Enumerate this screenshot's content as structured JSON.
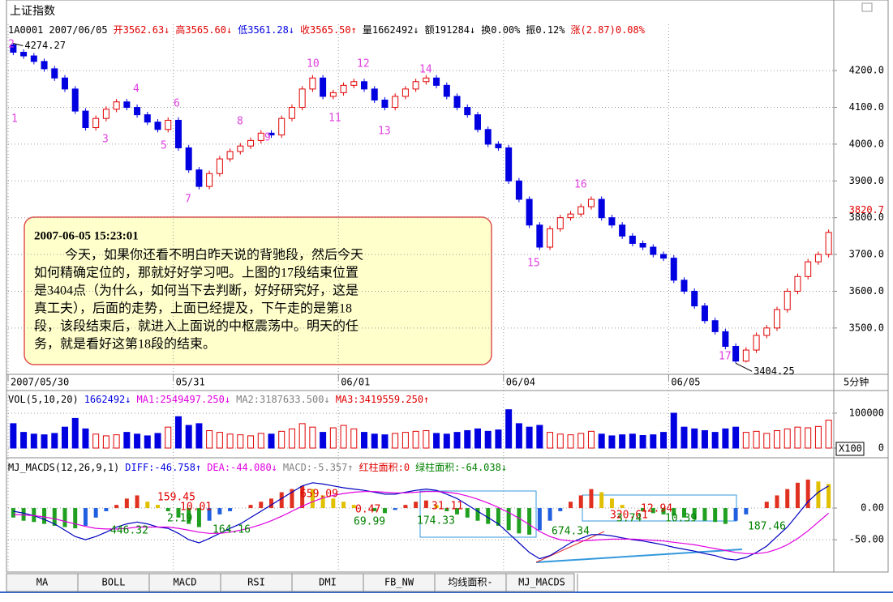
{
  "header": {
    "title": "上证指数",
    "items": [
      {
        "text": "1A0001",
        "color": "#000000"
      },
      {
        "text": "2007/06/05",
        "color": "#000000"
      },
      {
        "text": "开3562.63↓",
        "color": "#e00000"
      },
      {
        "text": "高3565.60↓",
        "color": "#e00000"
      },
      {
        "text": "低3561.28↓",
        "color": "#0000e0"
      },
      {
        "text": "收3565.50↑",
        "color": "#e00000"
      },
      {
        "text": "量1662492↓",
        "color": "#000000"
      },
      {
        "text": "额191284↓",
        "color": "#000000"
      },
      {
        "text": "换0.00%",
        "color": "#000000"
      },
      {
        "text": "振0.12%",
        "color": "#000000"
      },
      {
        "text": "涨(2.87)0.08%",
        "color": "#e00000"
      }
    ]
  },
  "chart_data": [
    {
      "type": "candlestick",
      "up_color": "#e00000",
      "down_color": "#0000e0",
      "ylim": [
        3374,
        4326
      ],
      "yticks": [
        {
          "value": 3500,
          "label": "3500.0"
        },
        {
          "value": 3600,
          "label": "3600.0"
        },
        {
          "value": 3700,
          "label": "3700.0"
        },
        {
          "value": 3800,
          "label": "3800.0"
        },
        {
          "value": 3900,
          "label": "3900.0"
        },
        {
          "value": 4000,
          "label": "4000.0"
        },
        {
          "value": 4100,
          "label": "4100.0"
        },
        {
          "value": 4200,
          "label": "4200.0"
        }
      ],
      "grid": true,
      "price_marker": 3820.7,
      "xticks": [
        "2007/05/30",
        "05/31",
        "06/01",
        "06/04",
        "06/05"
      ],
      "x_unit": "5分钟",
      "max_label": "4274.27",
      "min_label": "3404.25",
      "segments": [
        "1",
        "2",
        "3",
        "4",
        "5",
        "6",
        "7",
        "8",
        "9",
        "10",
        "11",
        "12",
        "13",
        "14",
        "15",
        "16",
        "17"
      ],
      "open": [
        4270,
        4250,
        4240,
        4225,
        4205,
        4180,
        4150,
        4090,
        4045,
        4070,
        4095,
        4115,
        4100,
        4080,
        4060,
        4040,
        4065,
        3990,
        3930,
        3885,
        3920,
        3960,
        3980,
        3995,
        4010,
        4030,
        4025,
        4070,
        4100,
        4150,
        4180,
        4130,
        4140,
        4160,
        4170,
        4150,
        4120,
        4100,
        4130,
        4150,
        4170,
        4180,
        4160,
        4130,
        4100,
        4080,
        4040,
        4000,
        3990,
        3900,
        3850,
        3780,
        3720,
        3770,
        3800,
        3810,
        3830,
        3850,
        3800,
        3780,
        3750,
        3730,
        3720,
        3700,
        3690,
        3630,
        3600,
        3560,
        3520,
        3490,
        3450,
        3410,
        3440,
        3480,
        3500,
        3550,
        3600,
        3640,
        3680,
        3700
      ],
      "close": [
        4250,
        4240,
        4225,
        4205,
        4180,
        4150,
        4090,
        4045,
        4070,
        4095,
        4115,
        4100,
        4080,
        4060,
        4040,
        4065,
        3990,
        3930,
        3885,
        3920,
        3960,
        3980,
        3995,
        4010,
        4030,
        4025,
        4070,
        4100,
        4150,
        4180,
        4130,
        4140,
        4160,
        4170,
        4150,
        4120,
        4100,
        4130,
        4150,
        4170,
        4180,
        4160,
        4130,
        4100,
        4080,
        4040,
        4000,
        3990,
        3900,
        3850,
        3780,
        3720,
        3770,
        3800,
        3810,
        3830,
        3850,
        3800,
        3780,
        3750,
        3730,
        3720,
        3700,
        3690,
        3630,
        3600,
        3560,
        3520,
        3490,
        3450,
        3410,
        3440,
        3480,
        3500,
        3550,
        3600,
        3640,
        3680,
        3700,
        3760
      ],
      "high": [
        4274.27,
        4258,
        4248,
        4233,
        4213,
        4188,
        4158,
        4098,
        4078,
        4103,
        4123,
        4123,
        4108,
        4088,
        4068,
        4073,
        4073,
        3998,
        3938,
        3928,
        3968,
        3988,
        4003,
        4018,
        4038,
        4038,
        4078,
        4108,
        4158,
        4188,
        4188,
        4148,
        4168,
        4178,
        4178,
        4158,
        4128,
        4138,
        4158,
        4178,
        4188,
        4188,
        4168,
        4138,
        4108,
        4088,
        4048,
        4008,
        3998,
        3908,
        3858,
        3788,
        3778,
        3808,
        3818,
        3838,
        3858,
        3858,
        3808,
        3788,
        3758,
        3738,
        3728,
        3708,
        3698,
        3638,
        3608,
        3568,
        3528,
        3498,
        3458,
        3448,
        3488,
        3508,
        3558,
        3608,
        3648,
        3688,
        3708,
        3768
      ],
      "low": [
        4242,
        4232,
        4217,
        4197,
        4172,
        4142,
        4082,
        4037,
        4037,
        4062,
        4087,
        4092,
        4072,
        4052,
        4032,
        4032,
        3982,
        3922,
        3877,
        3877,
        3912,
        3952,
        3972,
        3987,
        4002,
        4017,
        4017,
        4062,
        4092,
        4142,
        4122,
        4122,
        4132,
        4152,
        4142,
        4112,
        4092,
        4092,
        4122,
        4142,
        4162,
        4152,
        4122,
        4092,
        4072,
        4032,
        3992,
        3982,
        3892,
        3842,
        3772,
        3712,
        3712,
        3762,
        3792,
        3802,
        3822,
        3792,
        3772,
        3742,
        3722,
        3712,
        3692,
        3682,
        3622,
        3592,
        3552,
        3512,
        3482,
        3442,
        3404.25,
        3406,
        3432,
        3472,
        3492,
        3542,
        3592,
        3632,
        3672,
        3692
      ],
      "note": {
        "time": "2007-06-05 15:23:01",
        "lines": [
          "今天，如果你还看不明白昨天说的背驰段，然后今天",
          "如何精确定位的，那就好好学习吧。上图的17段结束位置",
          "是3404点（为什么，如何当下去判断，好好研究好，这是",
          "真工夫），后面的走势，上面已经提及，下午走的是第18",
          "段，该段结束后，就进入上面说的中枢震荡中。明天的任",
          "务，就是看好这第18段的结束。"
        ]
      }
    },
    {
      "type": "volume",
      "ylim": [
        0,
        151000
      ],
      "yticks": [
        0,
        100000
      ],
      "scale_label": "X100",
      "items": [
        {
          "text": "VOL(5,10,20)",
          "color": "#000000"
        },
        {
          "text": "1662492↓",
          "color": "#0000e0"
        },
        {
          "text": "MA1:2549497.250↓",
          "color": "#e000e0"
        },
        {
          "text": "MA2:3187633.500↓",
          "color": "#808080"
        },
        {
          "text": "MA3:3419559.250↑",
          "color": "#e00000"
        }
      ],
      "values": [
        70000,
        45000,
        40000,
        38000,
        42000,
        60000,
        85000,
        55000,
        40000,
        35000,
        38000,
        45000,
        40000,
        35000,
        42000,
        60000,
        90000,
        65000,
        70000,
        50000,
        45000,
        40000,
        38000,
        35000,
        42000,
        40000,
        48000,
        55000,
        70000,
        60000,
        45000,
        58000,
        65000,
        55000,
        45000,
        40000,
        38000,
        42000,
        45000,
        48000,
        50000,
        42000,
        40000,
        45000,
        50000,
        55000,
        48000,
        52000,
        110000,
        70000,
        60000,
        65000,
        45000,
        40000,
        38000,
        42000,
        48000,
        40000,
        35000,
        38000,
        40000,
        36000,
        38000,
        45000,
        100000,
        60000,
        55000,
        50000,
        45000,
        55000,
        60000,
        45000,
        48000,
        42000,
        50000,
        55000,
        60000,
        58000,
        62000,
        80000
      ]
    },
    {
      "type": "macd",
      "ylim": [
        -101,
        73
      ],
      "yticks": [
        {
          "value": 0,
          "label": "0.00"
        },
        {
          "value": -50,
          "label": "-50.00"
        }
      ],
      "items": [
        {
          "text": "MJ_MACDS(12,26,9,1)",
          "color": "#000000"
        },
        {
          "text": "DIFF:-46.758↑",
          "color": "#0000e0"
        },
        {
          "text": "DEA:-44.080↓",
          "color": "#e000e0"
        },
        {
          "text": "MACD:-5.357↑",
          "color": "#808080"
        },
        {
          "text": "红柱面积:0",
          "color": "#e00000"
        },
        {
          "text": "绿柱面积:-64.038↓",
          "color": "#008000"
        }
      ],
      "histogram": [
        -15,
        -20,
        -22,
        -25,
        -28,
        -30,
        -32,
        -28,
        -15,
        -5,
        5,
        15,
        20,
        10,
        5,
        -5,
        -15,
        -25,
        -30,
        -20,
        -10,
        -5,
        0,
        5,
        10,
        15,
        25,
        30,
        35,
        30,
        20,
        15,
        10,
        5,
        0,
        -5,
        -8,
        -3,
        5,
        10,
        12,
        5,
        -5,
        -10,
        -15,
        -20,
        -25,
        -28,
        -35,
        -40,
        -42,
        -35,
        -20,
        -5,
        10,
        20,
        30,
        25,
        15,
        5,
        0,
        -5,
        -8,
        -10,
        -12,
        -15,
        -18,
        -20,
        -22,
        -25,
        -20,
        -10,
        0,
        10,
        20,
        30,
        40,
        45,
        42,
        38
      ],
      "series": [
        {
          "name": "DIFF",
          "color": "#0000c0",
          "values": [
            -5,
            -8,
            -12,
            -18,
            -25,
            -35,
            -45,
            -50,
            -45,
            -38,
            -30,
            -25,
            -22,
            -25,
            -30,
            -32,
            -40,
            -50,
            -55,
            -48,
            -40,
            -32,
            -25,
            -15,
            -5,
            5,
            15,
            25,
            35,
            40,
            38,
            35,
            32,
            30,
            28,
            25,
            22,
            22,
            25,
            28,
            30,
            28,
            22,
            15,
            5,
            -5,
            -15,
            -25,
            -40,
            -55,
            -70,
            -80,
            -75,
            -65,
            -55,
            -48,
            -42,
            -42,
            -44,
            -47,
            -50,
            -52,
            -55,
            -58,
            -62,
            -65,
            -68,
            -72,
            -75,
            -80,
            -82,
            -78,
            -70,
            -60,
            -45,
            -30,
            -10,
            10,
            25,
            35
          ]
        },
        {
          "name": "DEA",
          "color": "#e000e0",
          "values": [
            -10,
            -11,
            -12,
            -14,
            -17,
            -21,
            -25,
            -29,
            -32,
            -33,
            -33,
            -32,
            -30,
            -30,
            -30,
            -30,
            -32,
            -35,
            -38,
            -40,
            -40,
            -38,
            -35,
            -31,
            -26,
            -20,
            -13,
            -5,
            3,
            10,
            16,
            20,
            23,
            25,
            26,
            26,
            25,
            24,
            24,
            25,
            26,
            26,
            25,
            23,
            19,
            14,
            8,
            1,
            -7,
            -16,
            -26,
            -37,
            -45,
            -50,
            -52,
            -52,
            -51,
            -50,
            -49,
            -49,
            -49,
            -50,
            -51,
            -52,
            -54,
            -56,
            -58,
            -61,
            -64,
            -67,
            -70,
            -72,
            -72,
            -70,
            -65,
            -58,
            -48,
            -36,
            -22,
            -8
          ]
        }
      ],
      "annotations": [
        "159.45",
        "10.01",
        "2.19",
        "446.32",
        "164.16",
        "659.09",
        "0.47",
        "69.99",
        "31.11",
        "174.33",
        "674.34",
        "320.61",
        "12.94",
        "3.74",
        "10.39",
        "187.46"
      ]
    }
  ],
  "tabs": [
    "MA",
    "BOLL",
    "MACD",
    "RSI",
    "DMI",
    "FB_NW",
    "均线面积-",
    "MJ_MACDS"
  ]
}
